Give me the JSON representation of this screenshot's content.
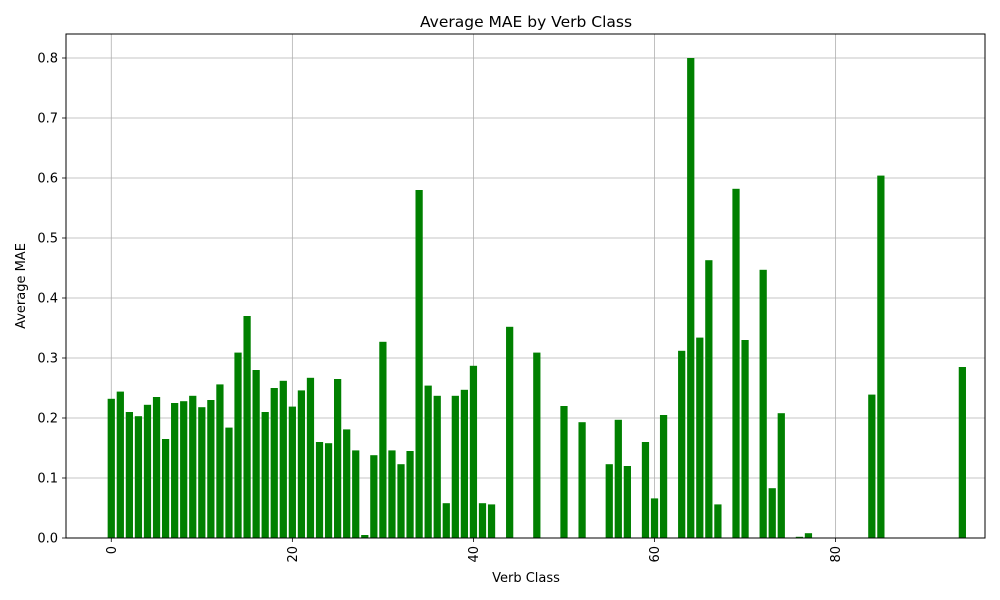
{
  "chart_data": {
    "type": "bar",
    "title": "Average MAE by Verb Class",
    "xlabel": "Verb Class",
    "ylabel": "Average MAE",
    "xlim": [
      -5,
      96.5
    ],
    "ylim": [
      0,
      0.84
    ],
    "xticks": [
      0,
      20,
      40,
      60,
      80
    ],
    "yticks": [
      0.0,
      0.1,
      0.2,
      0.3,
      0.4,
      0.5,
      0.6,
      0.7,
      0.8
    ],
    "xtick_rotation": 90,
    "grid": true,
    "color": "#008000",
    "x": [
      0,
      1,
      2,
      3,
      4,
      5,
      6,
      7,
      8,
      9,
      10,
      11,
      12,
      13,
      14,
      15,
      16,
      17,
      18,
      19,
      20,
      21,
      22,
      23,
      24,
      25,
      26,
      27,
      28,
      29,
      30,
      31,
      32,
      33,
      34,
      35,
      36,
      37,
      38,
      39,
      40,
      41,
      42,
      44,
      47,
      50,
      52,
      55,
      56,
      57,
      59,
      60,
      61,
      63,
      64,
      65,
      66,
      67,
      69,
      70,
      72,
      73,
      74,
      76,
      77,
      84,
      85,
      94
    ],
    "values": [
      0.232,
      0.244,
      0.21,
      0.203,
      0.222,
      0.235,
      0.165,
      0.225,
      0.228,
      0.237,
      0.218,
      0.23,
      0.256,
      0.184,
      0.309,
      0.37,
      0.28,
      0.21,
      0.25,
      0.262,
      0.219,
      0.246,
      0.267,
      0.16,
      0.158,
      0.265,
      0.181,
      0.146,
      0.005,
      0.138,
      0.327,
      0.146,
      0.123,
      0.145,
      0.58,
      0.254,
      0.237,
      0.058,
      0.237,
      0.247,
      0.287,
      0.058,
      0.056,
      0.352,
      0.309,
      0.22,
      0.193,
      0.123,
      0.197,
      0.12,
      0.16,
      0.066,
      0.205,
      0.312,
      0.8,
      0.334,
      0.463,
      0.056,
      0.582,
      0.33,
      0.447,
      0.083,
      0.208,
      0.002,
      0.008,
      0.239,
      0.604,
      0.285
    ]
  }
}
